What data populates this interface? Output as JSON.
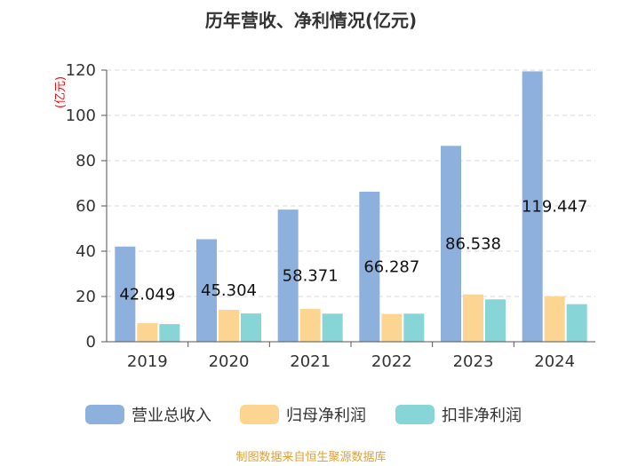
{
  "chart_data": {
    "type": "bar",
    "title": "历年营收、净利情况(亿元)",
    "ylabel": "(亿元)",
    "xlabel": "",
    "ylim": [
      0,
      120
    ],
    "yticks": [
      0,
      20,
      40,
      60,
      80,
      100,
      120
    ],
    "grid": true,
    "legend_position": "bottom",
    "categories": [
      "2019",
      "2020",
      "2021",
      "2022",
      "2023",
      "2024"
    ],
    "series": [
      {
        "name": "营业总收入",
        "color": "#8eb0dd",
        "values": [
          42.049,
          45.304,
          58.371,
          66.287,
          86.538,
          119.447
        ]
      },
      {
        "name": "归母净利润",
        "color": "#fcd592",
        "values": [
          8.2,
          14.1,
          14.5,
          12.3,
          20.9,
          20.1
        ]
      },
      {
        "name": "扣非净利润",
        "color": "#87d5d7",
        "values": [
          7.8,
          12.5,
          12.4,
          12.4,
          18.7,
          16.6
        ]
      }
    ],
    "data_labels": [
      "42.049",
      "45.304",
      "58.371",
      "66.287",
      "86.538",
      "119.447"
    ],
    "source": "制图数据来自恒生聚源数据库"
  }
}
